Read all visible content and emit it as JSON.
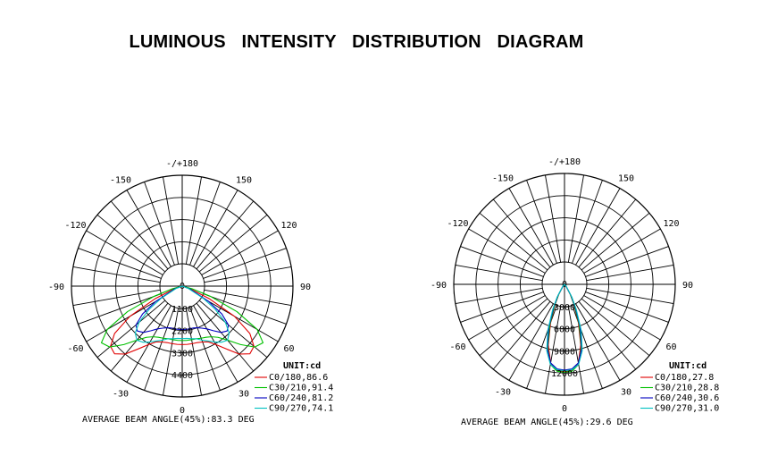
{
  "page": {
    "title": "LUMINOUS INTENSITY DISTRIBUTION DIAGRAM"
  },
  "chart_data": [
    {
      "type": "polar",
      "angle_unit": "deg",
      "angle_labels": [
        "-/+180",
        "150",
        "120",
        "90",
        "60",
        "30",
        "0",
        "-30",
        "-60",
        "-90",
        "-120",
        "-150"
      ],
      "radial_ticks": [
        "1100",
        "2200",
        "3300",
        "4400"
      ],
      "rmax": 5500,
      "unit_label": "UNIT:cd",
      "footer": "AVERAGE BEAM ANGLE(45%):83.3 DEG",
      "series": [
        {
          "name": "C0/180,86.6",
          "color": "#e00000",
          "angles": [
            -90,
            -75,
            -65,
            -60,
            -55,
            -50,
            -45,
            -40,
            -35,
            -30,
            -25,
            -20,
            -15,
            -10,
            -5,
            0,
            5,
            10,
            15,
            20,
            25,
            30,
            35,
            40,
            45,
            50,
            55,
            60,
            65,
            75,
            90
          ],
          "values": [
            0,
            300,
            1500,
            3000,
            4100,
            4650,
            4750,
            4400,
            3800,
            3350,
            3050,
            2950,
            2900,
            2900,
            2900,
            2900,
            2900,
            2900,
            2900,
            2950,
            3050,
            3350,
            3800,
            4400,
            4750,
            4650,
            4100,
            3000,
            1500,
            300,
            0
          ]
        },
        {
          "name": "C30/210,91.4",
          "color": "#00c000",
          "angles": [
            -90,
            -75,
            -70,
            -65,
            -60,
            -55,
            -50,
            -45,
            -40,
            -35,
            -30,
            -25,
            -20,
            -15,
            -10,
            -5,
            0,
            5,
            10,
            15,
            20,
            25,
            30,
            35,
            40,
            45,
            50,
            55,
            60,
            65,
            70,
            75,
            90
          ],
          "values": [
            0,
            500,
            1500,
            3000,
            4300,
            4900,
            4700,
            4100,
            3500,
            3100,
            2900,
            2800,
            2750,
            2700,
            2700,
            2700,
            2700,
            2700,
            2700,
            2700,
            2750,
            2800,
            2900,
            3100,
            3500,
            4100,
            4700,
            4900,
            4300,
            3000,
            1500,
            500,
            0
          ]
        },
        {
          "name": "C60/240,81.2",
          "color": "#0000c0",
          "angles": [
            -90,
            -70,
            -60,
            -55,
            -50,
            -45,
            -40,
            -35,
            -30,
            -25,
            -20,
            -15,
            -10,
            -5,
            0,
            5,
            10,
            15,
            20,
            25,
            30,
            35,
            40,
            45,
            50,
            55,
            60,
            70,
            90
          ],
          "values": [
            0,
            400,
            1500,
            2400,
            3000,
            3150,
            3000,
            2700,
            2450,
            2300,
            2200,
            2150,
            2150,
            2150,
            2150,
            2150,
            2150,
            2150,
            2200,
            2300,
            2450,
            2700,
            3000,
            3150,
            3000,
            2400,
            1500,
            400,
            0
          ]
        },
        {
          "name": "C90/270,74.1",
          "color": "#00c0c0",
          "angles": [
            -90,
            -70,
            -60,
            -55,
            -50,
            -45,
            -40,
            -35,
            -30,
            -25,
            -20,
            -15,
            -10,
            -5,
            0,
            5,
            10,
            15,
            20,
            25,
            30,
            35,
            40,
            45,
            50,
            55,
            60,
            70,
            90
          ],
          "values": [
            0,
            300,
            1200,
            2000,
            2800,
            3300,
            3500,
            3400,
            3200,
            3000,
            2850,
            2700,
            2650,
            2600,
            2600,
            2600,
            2650,
            2700,
            2850,
            3000,
            3200,
            3400,
            3500,
            3300,
            2800,
            2000,
            1200,
            300,
            0
          ]
        }
      ]
    },
    {
      "type": "polar",
      "angle_unit": "deg",
      "angle_labels": [
        "-/+180",
        "150",
        "120",
        "90",
        "60",
        "30",
        "0",
        "-30",
        "-60",
        "-90",
        "-120",
        "-150"
      ],
      "radial_ticks": [
        "3000",
        "6000",
        "9000",
        "12000"
      ],
      "rmax": 15000,
      "unit_label": "UNIT:cd",
      "footer": "AVERAGE BEAM ANGLE(45%):29.6 DEG",
      "series": [
        {
          "name": "C0/180,27.8",
          "color": "#e00000",
          "angles": [
            -90,
            -40,
            -30,
            -25,
            -20,
            -15,
            -10,
            -5,
            0,
            5,
            10,
            15,
            20,
            25,
            30,
            40,
            90
          ],
          "values": [
            0,
            300,
            1500,
            3000,
            5500,
            8500,
            10800,
            11700,
            11800,
            11700,
            10800,
            8500,
            5500,
            3000,
            1500,
            300,
            0
          ]
        },
        {
          "name": "C30/210,28.8",
          "color": "#00c000",
          "angles": [
            -90,
            -40,
            -30,
            -25,
            -20,
            -15,
            -10,
            -5,
            0,
            5,
            10,
            15,
            20,
            25,
            30,
            40,
            90
          ],
          "values": [
            0,
            300,
            1600,
            3200,
            5800,
            8800,
            11000,
            11800,
            11900,
            11800,
            11000,
            8800,
            5800,
            3200,
            1600,
            300,
            0
          ]
        },
        {
          "name": "C60/240,30.6",
          "color": "#0000c0",
          "angles": [
            -90,
            -40,
            -30,
            -25,
            -20,
            -15,
            -10,
            -5,
            0,
            5,
            10,
            15,
            20,
            25,
            30,
            40,
            90
          ],
          "values": [
            0,
            300,
            1800,
            3500,
            6200,
            9000,
            10800,
            11500,
            11600,
            11500,
            10800,
            9000,
            6200,
            3500,
            1800,
            300,
            0
          ]
        },
        {
          "name": "C90/270,31.0",
          "color": "#00c0c0",
          "angles": [
            -90,
            -40,
            -30,
            -25,
            -20,
            -15,
            -10,
            -5,
            0,
            5,
            10,
            15,
            20,
            25,
            30,
            40,
            90
          ],
          "values": [
            0,
            400,
            2000,
            3800,
            6600,
            9300,
            11000,
            11600,
            11700,
            11600,
            11000,
            9300,
            6600,
            3800,
            2000,
            400,
            0
          ]
        }
      ]
    }
  ]
}
